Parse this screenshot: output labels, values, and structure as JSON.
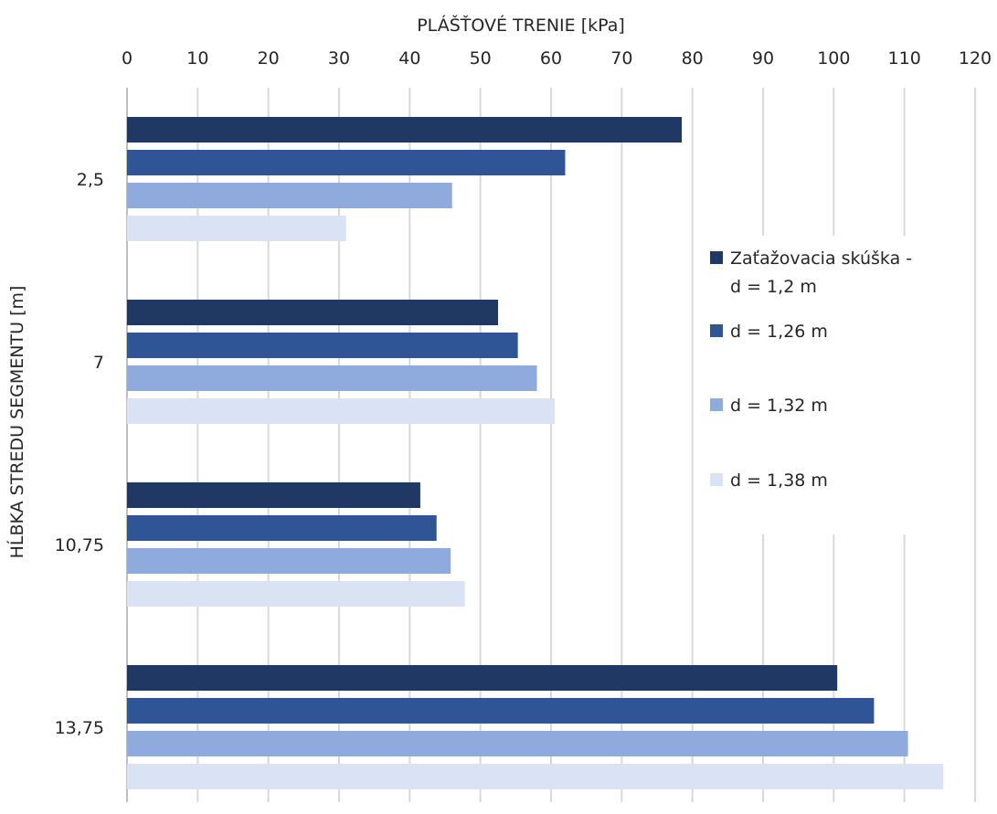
{
  "chart_data": {
    "type": "bar",
    "orientation": "horizontal",
    "xlabel": "PLÁŠŤOVÉ TRENIE [kPa]",
    "ylabel": "HĹBKA STREDU SEGMENTU [m]",
    "xlim": [
      0,
      120
    ],
    "x_ticks": [
      "0",
      "10",
      "20",
      "30",
      "40",
      "50",
      "60",
      "70",
      "80",
      "90",
      "100",
      "110",
      "120"
    ],
    "x_axis_position": "top",
    "grid": "vertical",
    "categories": [
      "2,5",
      "7",
      "10,75",
      "13,75"
    ],
    "series": [
      {
        "name": "Zaťažovacia skúška - d = 1,2 m",
        "legend_lines": [
          "Zaťažovacia skúška -",
          "d = 1,2 m"
        ],
        "color": "#203864",
        "values": [
          78.5,
          52.5,
          41.5,
          100.5
        ]
      },
      {
        "name": "d = 1,26 m",
        "legend_lines": [
          "d = 1,26 m"
        ],
        "color": "#2f5597",
        "values": [
          62,
          55.3,
          43.8,
          105.7
        ]
      },
      {
        "name": "d = 1,32 m",
        "legend_lines": [
          "d = 1,32 m"
        ],
        "color": "#8faadc",
        "values": [
          46,
          58,
          45.8,
          110.5
        ]
      },
      {
        "name": "d = 1,38 m",
        "legend_lines": [
          "d = 1,38 m"
        ],
        "color": "#dae3f3",
        "values": [
          31,
          60.5,
          47.8,
          115.5
        ]
      }
    ],
    "legend_position": "right"
  }
}
